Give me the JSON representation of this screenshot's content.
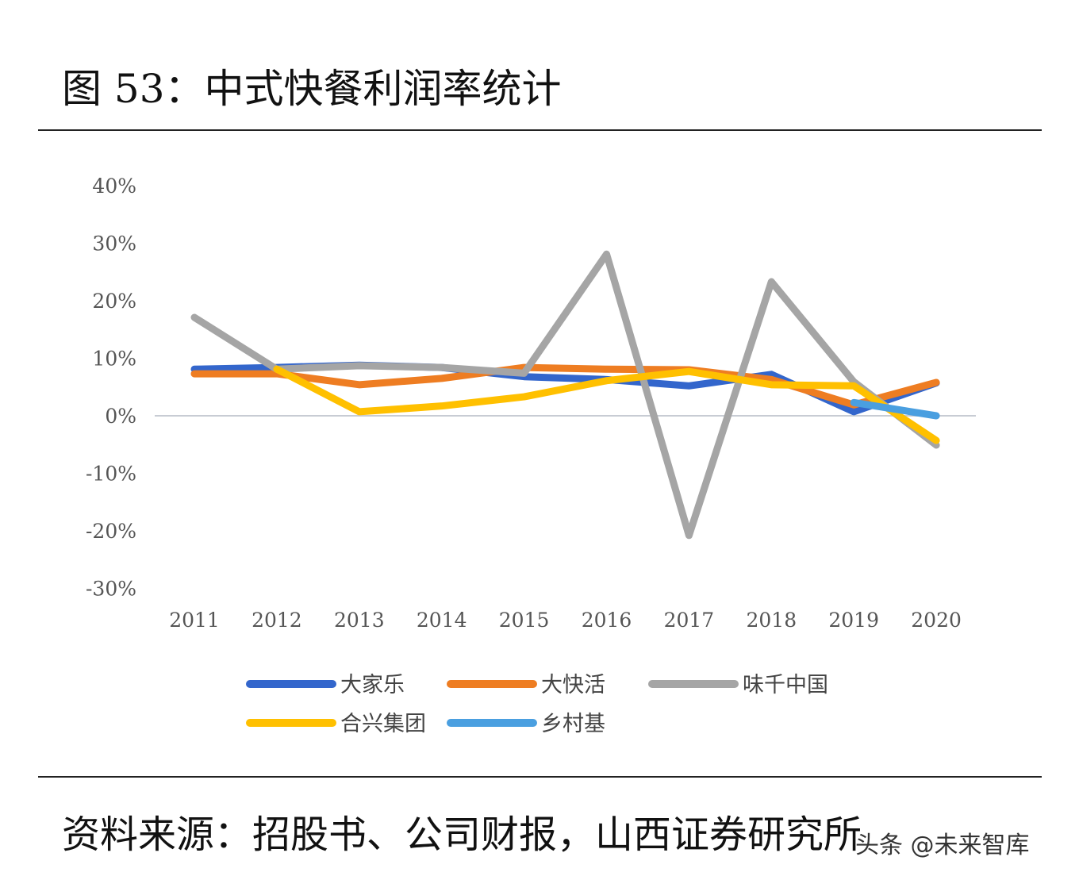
{
  "title": "图 53：中式快餐利润率统计",
  "source": "资料来源：招股书、公司财报，山西证券研究所",
  "watermark": "头条 @未来智库",
  "chart_data": {
    "type": "line",
    "title": "",
    "xlabel": "",
    "ylabel": "",
    "ylim": [
      -30,
      40
    ],
    "yticks": [
      40,
      30,
      20,
      10,
      0,
      -10,
      -20,
      -30
    ],
    "ytick_labels": [
      "40%",
      "30%",
      "20%",
      "10%",
      "0%",
      "-10%",
      "-20%",
      "-30%"
    ],
    "categories": [
      "2011",
      "2012",
      "2013",
      "2014",
      "2015",
      "2016",
      "2017",
      "2018",
      "2019",
      "2020"
    ],
    "legend_position": "bottom",
    "grid": false,
    "series": [
      {
        "name": "大家乐",
        "color": "#3366cc",
        "values": [
          8.1,
          8.4,
          8.8,
          8.4,
          6.8,
          6.3,
          5.2,
          7.2,
          0.7,
          5.7
        ]
      },
      {
        "name": "大快活",
        "color": "#ee7d22",
        "values": [
          7.3,
          7.3,
          5.4,
          6.5,
          8.4,
          8.1,
          8.0,
          6.3,
          1.9,
          5.8
        ]
      },
      {
        "name": "味千中国",
        "color": "#a5a5a5",
        "values": [
          17.1,
          8.1,
          8.7,
          8.4,
          7.4,
          28.1,
          -20.8,
          23.3,
          5.9,
          -5.1
        ]
      },
      {
        "name": "合兴集团",
        "color": "#ffc000",
        "values": [
          null,
          8.1,
          0.7,
          1.7,
          3.3,
          6.1,
          7.7,
          5.4,
          5.2,
          -4.3
        ]
      },
      {
        "name": "乡村基",
        "color": "#4a9fe0",
        "values": [
          null,
          null,
          null,
          null,
          null,
          null,
          null,
          null,
          2.3,
          0.0
        ]
      }
    ]
  }
}
